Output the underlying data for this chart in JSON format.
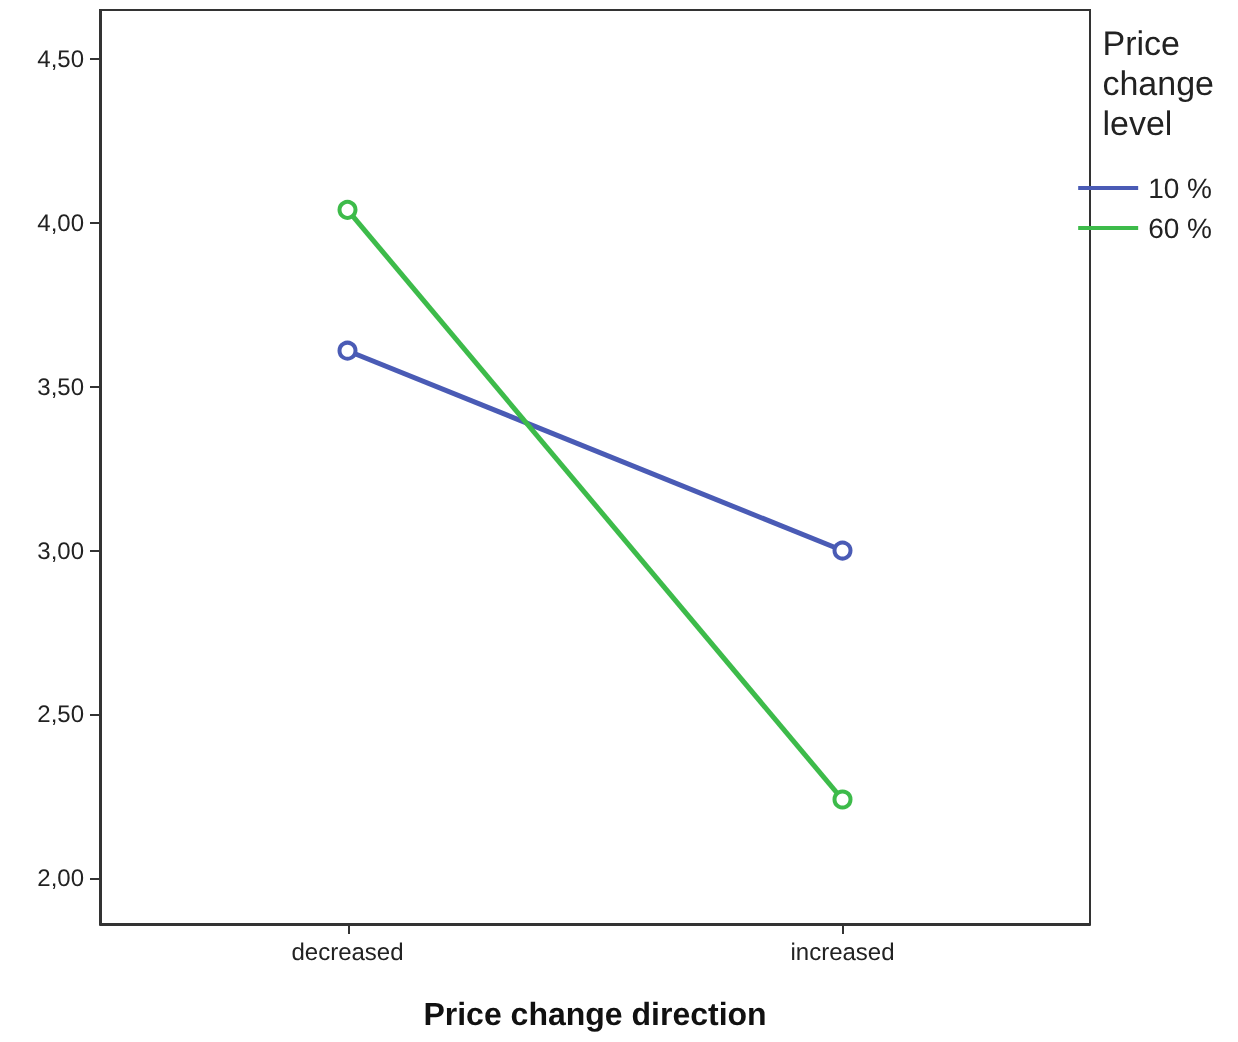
{
  "chart_data": {
    "type": "line",
    "xlabel": "Price change direction",
    "legend_title": "Price change level",
    "categories": [
      "decreased",
      "increased"
    ],
    "series": [
      {
        "name": "10 %",
        "color": "#4a5bb5",
        "values": [
          3.61,
          3.0
        ]
      },
      {
        "name": "60 %",
        "color": "#3dbb4a",
        "values": [
          4.04,
          2.24
        ]
      }
    ],
    "ylim": [
      1.86,
      4.65
    ],
    "yticks": [
      {
        "value": 2,
        "label": "2,00"
      },
      {
        "value": 2.5,
        "label": "2,50"
      },
      {
        "value": 3,
        "label": "3,00"
      },
      {
        "value": 3.5,
        "label": "3,50"
      },
      {
        "value": 4,
        "label": "4,00"
      },
      {
        "value": 4.5,
        "label": "4,50"
      }
    ],
    "grid": false,
    "legend": "top right",
    "marker": "circle",
    "line_style": "solid"
  }
}
